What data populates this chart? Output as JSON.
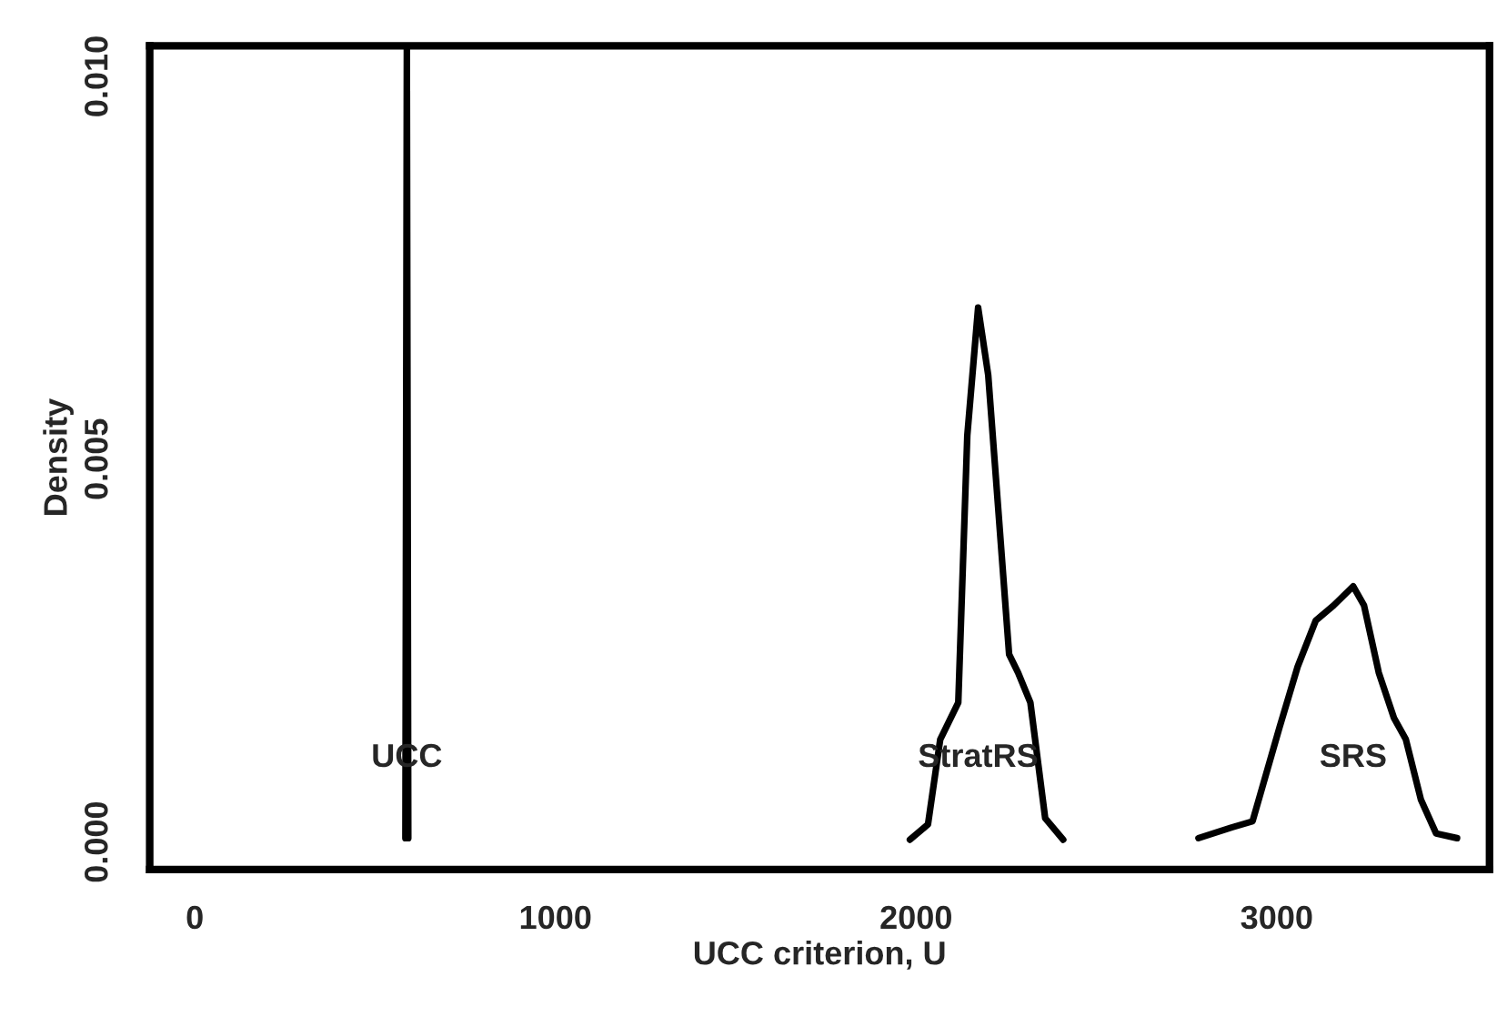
{
  "chart_data": {
    "type": "line",
    "xlabel": "UCC criterion, U",
    "ylabel": "Density",
    "xlim": [
      -125,
      3590
    ],
    "ylim": [
      -0.00036,
      0.0104
    ],
    "xticks": [
      0,
      1000,
      2000,
      3000
    ],
    "yticks": [
      {
        "value": 0,
        "label": "0.000"
      },
      {
        "value": 0.005,
        "label": "0.005"
      },
      {
        "value": 0.01,
        "label": "0.010"
      }
    ],
    "grid": false,
    "legend": false,
    "series": [
      {
        "name": "UCC",
        "color": "#000000",
        "x": [
          584,
          588,
          592
        ],
        "values": [
          5e-05,
          0.0104,
          5e-05
        ]
      },
      {
        "name": "StratRS",
        "color": "#000000",
        "x": [
          1983,
          2033,
          2067,
          2092,
          2117,
          2142,
          2172,
          2200,
          2258,
          2283,
          2317,
          2358,
          2408
        ],
        "values": [
          3e-05,
          0.00023,
          0.00134,
          0.00158,
          0.00182,
          0.00531,
          0.00698,
          0.0061,
          0.00245,
          0.00221,
          0.00182,
          0.00031,
          3e-05
        ]
      },
      {
        "name": "SRS",
        "color": "#000000",
        "x": [
          2783,
          2875,
          2933,
          3008,
          3058,
          3108,
          3158,
          3212,
          3242,
          3283,
          3325,
          3358,
          3400,
          3442,
          3500
        ],
        "values": [
          5e-05,
          0.00019,
          0.00027,
          0.0015,
          0.00229,
          0.00289,
          0.00309,
          0.00334,
          0.00309,
          0.00221,
          0.00162,
          0.00134,
          0.00055,
          0.00011,
          5e-05
        ]
      }
    ]
  }
}
